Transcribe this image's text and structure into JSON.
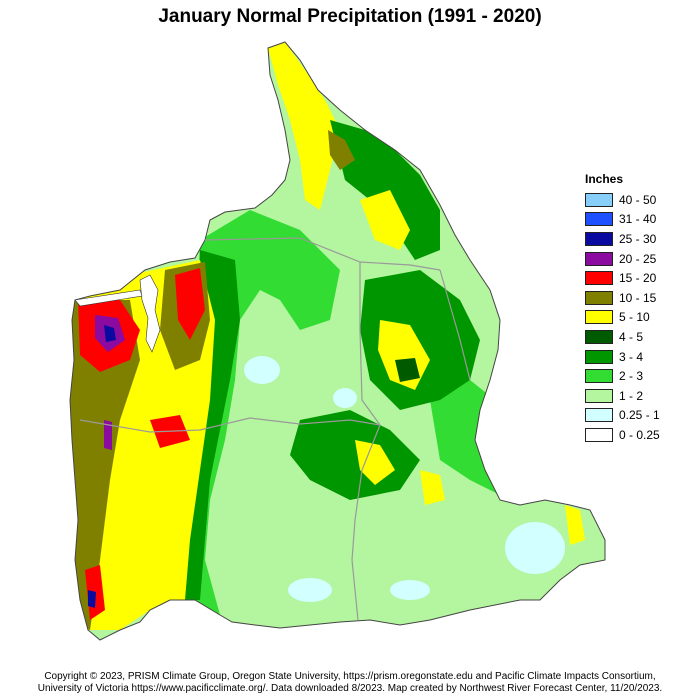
{
  "title": "January Normal Precipitation (1991 - 2020)",
  "legend": {
    "title": "Inches",
    "items": [
      {
        "label": "40 - 50",
        "color": "#87cefa"
      },
      {
        "label": "31 - 40",
        "color": "#1e50ff"
      },
      {
        "label": "25 - 30",
        "color": "#0a0aa0"
      },
      {
        "label": "20 - 25",
        "color": "#8b0aa0"
      },
      {
        "label": "15 - 20",
        "color": "#ff0000"
      },
      {
        "label": "10 - 15",
        "color": "#808000"
      },
      {
        "label": "5 - 10",
        "color": "#ffff00"
      },
      {
        "label": "4 - 5",
        "color": "#005a00"
      },
      {
        "label": "3 - 4",
        "color": "#009600"
      },
      {
        "label": "2 - 3",
        "color": "#32dc32"
      },
      {
        "label": "1 - 2",
        "color": "#b4f5a0"
      },
      {
        "label": "0.25 - 1",
        "color": "#d2ffff"
      },
      {
        "label": "0 - 0.25",
        "color": "#ffffff"
      }
    ]
  },
  "credit": {
    "line1": "Copyright © 2023, PRISM Climate Group, Oregon State University, https://prism.oregonstate.edu and Pacific Climate Impacts Consortium,",
    "line2": "University of Victoria https://www.pacificclimate.org/.  Data downloaded 8/2023. Map created by Northwest River Forecast Center, 11/20/2023."
  }
}
